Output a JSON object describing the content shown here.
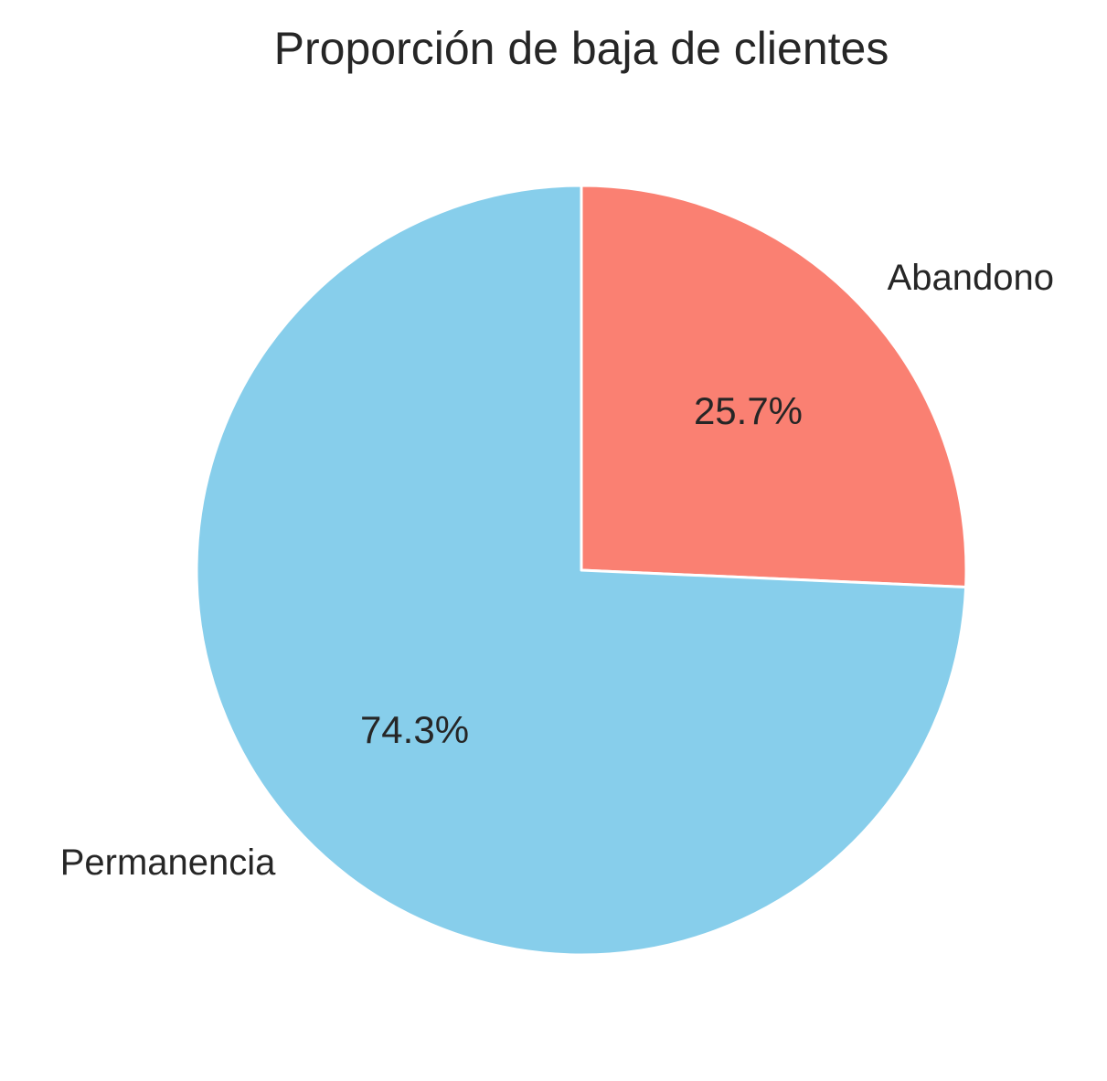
{
  "chart_data": {
    "type": "pie",
    "title": "Proporción de baja de clientes",
    "start_angle_deg": 90,
    "direction": "clockwise",
    "slices": [
      {
        "label": "Abandono",
        "value": 25.7,
        "pct_text": "25.7%",
        "color": "#fa8072"
      },
      {
        "label": "Permanencia",
        "value": 74.3,
        "pct_text": "74.3%",
        "color": "#87ceeb"
      }
    ],
    "edge_color": "#ffffff"
  }
}
